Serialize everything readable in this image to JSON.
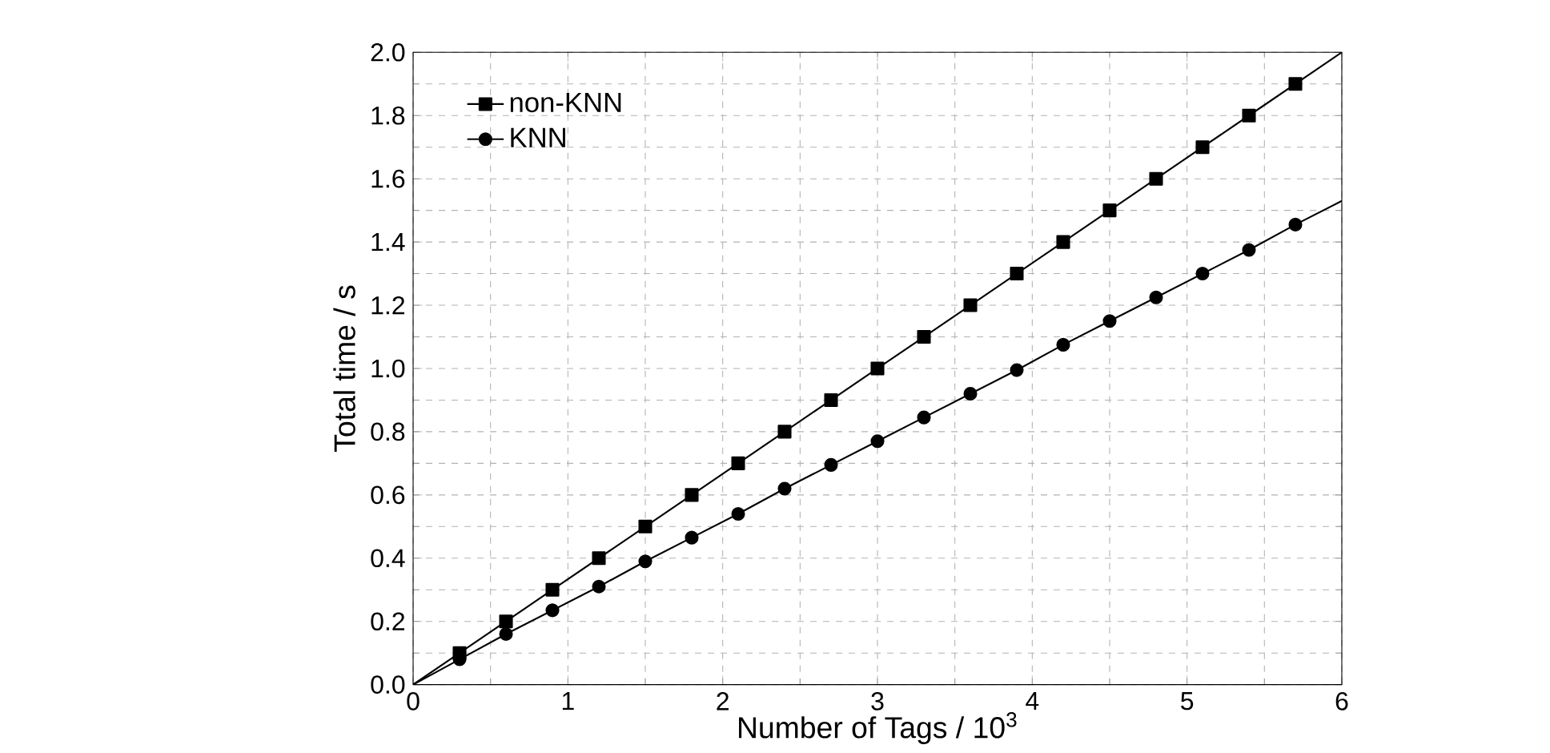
{
  "chart_data": {
    "type": "line",
    "xlabel": "Number of Tags / 10$^{3}$",
    "ylabel": "Total time / s",
    "xlim": [
      0,
      6
    ],
    "ylim": [
      0,
      2
    ],
    "xticks": [
      0,
      1,
      2,
      3,
      4,
      5,
      6
    ],
    "yticks": [
      {
        "value": 0,
        "label": "0.0"
      },
      {
        "value": 0.2,
        "label": "0.2"
      },
      {
        "value": 0.4,
        "label": "0.4"
      },
      {
        "value": 0.6,
        "label": "0.6"
      },
      {
        "value": 0.8,
        "label": "0.8"
      },
      {
        "value": 1.0,
        "label": "1.0"
      },
      {
        "value": 1.2,
        "label": "1.2"
      },
      {
        "value": 1.4,
        "label": "1.4"
      },
      {
        "value": 1.6,
        "label": "1.6"
      },
      {
        "value": 1.8,
        "label": "1.8"
      },
      {
        "value": 2.0,
        "label": "2.0"
      }
    ],
    "grid": true,
    "legend": "top left",
    "x": [
      0,
      0.3,
      0.6,
      0.9,
      1.2,
      1.5,
      1.8,
      2.1,
      2.4,
      2.7,
      3.0,
      3.3,
      3.6,
      3.9,
      4.2,
      4.5,
      4.8,
      5.1,
      5.4,
      5.7,
      6.0
    ],
    "series": [
      {
        "name": "non-KNN",
        "color": "#000000",
        "marker": "square",
        "values": [
          0,
          0.1,
          0.2,
          0.3,
          0.4,
          0.5,
          0.6,
          0.7,
          0.8,
          0.9,
          1.0,
          1.1,
          1.2,
          1.3,
          1.4,
          1.5,
          1.6,
          1.7,
          1.8,
          1.9,
          2.0
        ]
      },
      {
        "name": "KNN",
        "color": "#000000",
        "marker": "circle",
        "values": [
          0,
          0.08,
          0.16,
          0.235,
          0.31,
          0.39,
          0.465,
          0.54,
          0.62,
          0.695,
          0.77,
          0.845,
          0.92,
          0.995,
          1.075,
          1.15,
          1.225,
          1.3,
          1.375,
          1.455,
          1.53
        ]
      }
    ]
  }
}
